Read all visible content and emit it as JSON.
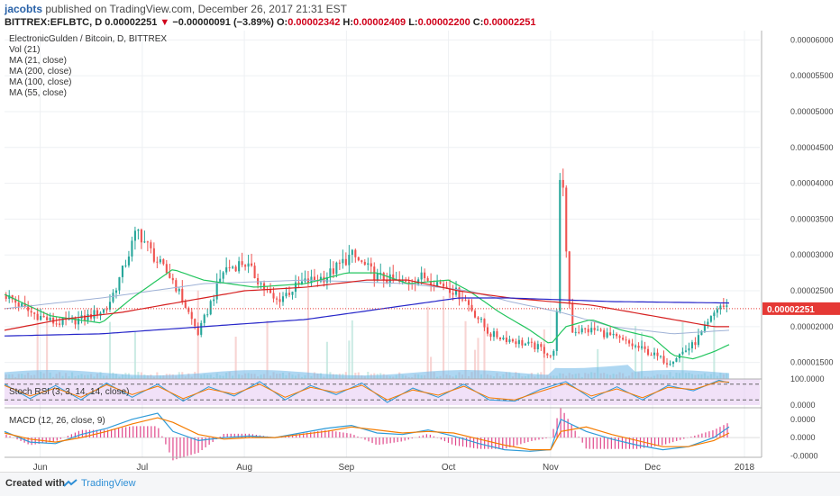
{
  "header": {
    "author": "jacobts",
    "published_text": "published on TradingView.com, December 26, 2017 21:31 EST",
    "symbol": "BITTREX:EFLBTC, D",
    "last": "0.00002251",
    "change_arrow": "▼",
    "change": "−0.00000091 (−3.89%)",
    "o_label": "O:",
    "o_value": "0.00002342",
    "h_label": "H:",
    "h_value": "0.00002409",
    "l_label": "L:",
    "l_value": "0.00002200",
    "c_label": "C:",
    "c_value": "0.00002251"
  },
  "legend": {
    "title": "ElectronicGulden / Bitcoin, D, BITTREX",
    "items": [
      "Vol (21)",
      "MA (21, close)",
      "MA (200, close)",
      "MA (100, close)",
      "MA (55, close)"
    ]
  },
  "panes": {
    "stoch_label": "Stoch RSI (3, 3, 14, 14, close)",
    "macd_label": "MACD (12, 26, close, 9)"
  },
  "footer": {
    "created": "Created with",
    "brand": "TradingView"
  },
  "colors": {
    "up": "#26a69a",
    "down": "#ef5350",
    "ma21": "#22c55e",
    "ma200": "#2626c9",
    "ma100": "#d62020",
    "ma55": "#9fb2d6",
    "volume": "#6bb6e8",
    "stoch_k": "#2e9bd8",
    "stoch_d": "#f57c00",
    "macd": "#2e9bd8",
    "signal": "#f57c00",
    "hist": "#e0488b",
    "price_tag": "#e53935"
  },
  "chart_data": [
    {
      "type": "candlestick",
      "title": "ElectronicGulden / Bitcoin, D, BITTREX",
      "x_ticks": [
        "Jun",
        "Jul",
        "Aug",
        "Sep",
        "Oct",
        "Nov",
        "Dec",
        "2018"
      ],
      "x_tick_pos": [
        0.4,
        1.4,
        2.4,
        3.4,
        4.4,
        5.4,
        6.4,
        7.3
      ],
      "y_ticks": [
        "0.00006000",
        "0.00005500",
        "0.00005000",
        "0.00004500",
        "0.00004000",
        "0.00003500",
        "0.00003000",
        "0.00002500",
        "0.00002000",
        "0.00001500"
      ],
      "y_tick_values": [
        6e-05,
        5.5e-05,
        5e-05,
        4.5e-05,
        4e-05,
        3.5e-05,
        3e-05,
        2.5e-05,
        2e-05,
        1.5e-05
      ],
      "ylim": [
        1.27e-05,
        6.13e-05
      ],
      "xlim": [
        0.05,
        7.45
      ],
      "last_price": "0.00002251",
      "last_value": 2.251e-05,
      "ohlc_last": {
        "open": 2.342e-05,
        "high": 2.409e-05,
        "low": 2.2e-05,
        "close": 2.251e-05
      },
      "close_keypoints": {
        "t": [
          0.05,
          0.3,
          0.55,
          0.8,
          1.05,
          1.2,
          1.35,
          1.55,
          1.7,
          1.95,
          2.2,
          2.4,
          2.7,
          2.95,
          3.2,
          3.45,
          3.7,
          3.95,
          4.15,
          4.4,
          4.55,
          4.8,
          5.05,
          5.3,
          5.4,
          5.45,
          5.5,
          5.6,
          5.85,
          6.1,
          6.35,
          6.55,
          6.8,
          6.95,
          7.05,
          7.15
        ],
        "v": [
          2.45e-05,
          2.2e-05,
          2.05e-05,
          2.1e-05,
          2.25e-05,
          2.75e-05,
          3.35e-05,
          2.9e-05,
          2.65e-05,
          1.9e-05,
          2.8e-05,
          2.9e-05,
          2.35e-05,
          2.6e-05,
          2.7e-05,
          3e-05,
          2.7e-05,
          2.6e-05,
          2.7e-05,
          2.55e-05,
          2.4e-05,
          1.9e-05,
          1.8e-05,
          1.7e-05,
          1.6e-05,
          1.65e-05,
          4.4e-05,
          1.95e-05,
          1.95e-05,
          1.8e-05,
          1.65e-05,
          1.5e-05,
          1.75e-05,
          2.05e-05,
          2.3e-05,
          2.251e-05
        ]
      },
      "ma21": {
        "t": [
          0.05,
          0.5,
          1.0,
          1.3,
          1.7,
          2.0,
          2.5,
          3.0,
          3.4,
          3.7,
          4.0,
          4.4,
          4.6,
          4.9,
          5.2,
          5.4,
          5.55,
          5.8,
          6.1,
          6.4,
          6.6,
          6.8,
          7.0,
          7.15
        ],
        "v": [
          2.45e-05,
          2.15e-05,
          2.05e-05,
          2.4e-05,
          2.8e-05,
          2.65e-05,
          2.55e-05,
          2.6e-05,
          2.75e-05,
          2.75e-05,
          2.6e-05,
          2.65e-05,
          2.5e-05,
          2.2e-05,
          1.95e-05,
          1.75e-05,
          2e-05,
          2.1e-05,
          1.95e-05,
          1.85e-05,
          1.6e-05,
          1.55e-05,
          1.65e-05,
          1.75e-05
        ]
      },
      "ma100": {
        "t": [
          0.05,
          0.6,
          1.2,
          1.8,
          2.4,
          3.0,
          3.6,
          4.0,
          4.5,
          5.0,
          5.4,
          5.8,
          6.2,
          6.6,
          7.0,
          7.15
        ],
        "v": [
          1.95e-05,
          2.1e-05,
          2.2e-05,
          2.35e-05,
          2.5e-05,
          2.55e-05,
          2.65e-05,
          2.65e-05,
          2.5e-05,
          2.4e-05,
          2.35e-05,
          2.3e-05,
          2.2e-05,
          2.1e-05,
          2e-05,
          2e-05
        ]
      },
      "ma200": {
        "t": [
          0.05,
          1.0,
          2.0,
          3.0,
          4.0,
          4.5,
          5.0,
          6.0,
          7.15
        ],
        "v": [
          1.87e-05,
          1.9e-05,
          2e-05,
          2.1e-05,
          2.3e-05,
          2.4e-05,
          2.4e-05,
          2.35e-05,
          2.33e-05
        ]
      },
      "ma55": {
        "t": [
          0.05,
          1.0,
          2.0,
          3.0,
          4.0,
          4.6,
          5.0,
          5.5,
          6.0,
          6.6,
          7.15
        ],
        "v": [
          2.25e-05,
          2.4e-05,
          2.6e-05,
          2.65e-05,
          2.6e-05,
          2.5e-05,
          2.35e-05,
          2.2e-05,
          2e-05,
          1.9e-05,
          1.95e-05
        ]
      }
    },
    {
      "type": "line",
      "title": "Stoch RSI (3, 3, 14, 14, close)",
      "ylim": [
        0,
        100
      ],
      "levels": [
        80,
        20
      ],
      "y_ticks": [
        "100.0000",
        "0.0000"
      ],
      "y_tick_values": [
        100,
        0
      ],
      "x": [
        0.05,
        0.3,
        0.55,
        0.8,
        1.05,
        1.3,
        1.55,
        1.8,
        2.05,
        2.3,
        2.55,
        2.8,
        3.05,
        3.3,
        3.55,
        3.8,
        4.05,
        4.3,
        4.55,
        4.8,
        5.05,
        5.3,
        5.55,
        5.8,
        6.05,
        6.3,
        6.55,
        6.8,
        7.05,
        7.15
      ],
      "series": [
        {
          "values": [
            80,
            25,
            75,
            20,
            85,
            30,
            80,
            15,
            70,
            35,
            90,
            20,
            75,
            40,
            85,
            10,
            65,
            30,
            80,
            20,
            15,
            60,
            90,
            25,
            70,
            20,
            75,
            55,
            95,
            85
          ]
        },
        {
          "values": [
            75,
            35,
            65,
            30,
            78,
            40,
            72,
            25,
            62,
            42,
            80,
            30,
            68,
            48,
            76,
            20,
            58,
            38,
            72,
            28,
            20,
            52,
            82,
            35,
            62,
            28,
            68,
            60,
            90,
            88
          ]
        }
      ]
    },
    {
      "type": "line",
      "title": "MACD (12, 26, close, 9)",
      "ylim": [
        -1.3e-06,
        1.9e-06
      ],
      "y_ticks": [
        "0.0000",
        "0.0000",
        "-0.0000"
      ],
      "y_tick_values": [
        1.2e-06,
        0.0,
        -1.2e-06
      ],
      "x": [
        0.05,
        0.3,
        0.55,
        0.8,
        1.05,
        1.3,
        1.55,
        1.7,
        1.95,
        2.2,
        2.45,
        2.7,
        2.95,
        3.2,
        3.45,
        3.7,
        3.95,
        4.2,
        4.45,
        4.7,
        4.95,
        5.2,
        5.4,
        5.5,
        5.75,
        6.0,
        6.25,
        6.5,
        6.75,
        7.0,
        7.15
      ],
      "series": [
        {
          "values": [
            4e-07,
            -3e-07,
            -4e-07,
            2e-07,
            6e-07,
            1.2e-06,
            1.6e-06,
            4e-07,
            -2e-07,
            0.0,
            1e-07,
            0.0,
            3e-07,
            6e-07,
            8e-07,
            3e-07,
            2e-07,
            5e-07,
            1e-07,
            -4e-07,
            -8e-07,
            -9e-07,
            -8e-07,
            1.2e-06,
            4e-07,
            -1e-07,
            -5e-07,
            -8e-07,
            -6e-07,
            0.0,
            7e-07
          ]
        },
        {
          "values": [
            3e-07,
            -1e-07,
            -3e-07,
            0.0,
            4e-07,
            9e-07,
            1.3e-06,
            1e-06,
            2e-07,
            -1e-07,
            0.0,
            0.0,
            2e-07,
            4e-07,
            7e-07,
            5e-07,
            3e-07,
            4e-07,
            3e-07,
            -1e-07,
            -5e-07,
            -8e-07,
            -8e-07,
            4e-07,
            7e-07,
            2e-07,
            -2e-07,
            -6e-07,
            -6e-07,
            -2e-07,
            3e-07
          ]
        }
      ]
    }
  ]
}
